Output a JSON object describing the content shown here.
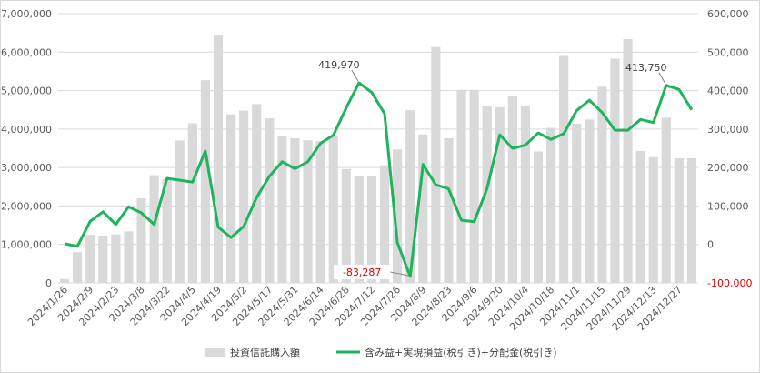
{
  "chart_data": {
    "type": "bar+line",
    "title": "",
    "x": [
      "2024/1/26",
      "2024/2/2",
      "2024/2/9",
      "2024/2/16",
      "2024/2/23",
      "2024/3/1",
      "2024/3/8",
      "2024/3/15",
      "2024/3/22",
      "2024/3/29",
      "2024/4/5",
      "2024/4/12",
      "2024/4/19",
      "2024/4/26",
      "2024/5/2",
      "2024/5/10",
      "2024/5/17",
      "2024/5/24",
      "2024/5/31",
      "2024/6/7",
      "2024/6/14",
      "2024/6/21",
      "2024/6/28",
      "2024/7/5",
      "2024/7/12",
      "2024/7/19",
      "2024/7/26",
      "2024/8/2",
      "2024/8/9",
      "2024/8/16",
      "2024/8/23",
      "2024/8/30",
      "2024/9/6",
      "2024/9/13",
      "2024/9/20",
      "2024/9/27",
      "2024/10/4",
      "2024/10/11",
      "2024/10/18",
      "2024/10/25",
      "2024/11/1",
      "2024/11/8",
      "2024/11/15",
      "2024/11/22",
      "2024/11/29",
      "2024/12/6",
      "2024/12/13",
      "2024/12/20",
      "2024/12/27",
      "2025/1/3"
    ],
    "x_tick_labels": [
      "2024/1/26",
      "2024/2/9",
      "2024/2/23",
      "2024/3/8",
      "2024/3/22",
      "2024/4/5",
      "2024/4/19",
      "2024/5/2",
      "2024/5/17",
      "2024/5/31",
      "2024/6/14",
      "2024/6/28",
      "2024/7/12",
      "2024/7/26",
      "2024/8/9",
      "2024/8/23",
      "2024/9/6",
      "2024/9/20",
      "2024/10/4",
      "2024/10/18",
      "2024/11/1",
      "2024/11/15",
      "2024/11/29",
      "2024/12/13",
      "2024/12/27"
    ],
    "series": [
      {
        "name": "投資信託購入額",
        "kind": "bar",
        "axis": "left",
        "color": "#d9d9d9",
        "values": [
          100000,
          800000,
          1250000,
          1230000,
          1260000,
          1340000,
          2200000,
          2800000,
          2700000,
          3700000,
          4150000,
          5270000,
          6430000,
          4380000,
          4480000,
          4650000,
          4280000,
          3830000,
          3760000,
          3710000,
          3690000,
          3830000,
          2960000,
          2790000,
          2770000,
          3060000,
          3470000,
          4490000,
          3860000,
          6130000,
          3760000,
          5020000,
          5020000,
          4600000,
          4570000,
          4870000,
          4600000,
          3420000,
          4030000,
          5900000,
          4140000,
          4250000,
          5100000,
          5830000,
          6340000,
          3430000,
          3270000,
          4300000,
          3240000,
          3240000
        ]
      },
      {
        "name": "含み益+実現損益(税引き)+分配金(税引き)",
        "kind": "line",
        "axis": "right",
        "color": "#1fb35b",
        "values": [
          2000,
          -5000,
          60000,
          85000,
          52000,
          98000,
          82000,
          52000,
          172000,
          167000,
          162000,
          243000,
          45000,
          18000,
          47000,
          122000,
          177000,
          215000,
          197000,
          215000,
          263000,
          284000,
          355000,
          419970,
          395000,
          340000,
          5000,
          -83287,
          208000,
          155000,
          145000,
          63000,
          59000,
          145000,
          285000,
          250000,
          258000,
          290000,
          273000,
          288000,
          348000,
          375000,
          343000,
          297000,
          297000,
          325000,
          317000,
          413750,
          403000,
          350000
        ]
      }
    ],
    "y_left": {
      "ylim": [
        0,
        7000000
      ],
      "ticks": [
        "0",
        "1,000,000",
        "2,000,000",
        "3,000,000",
        "4,000,000",
        "5,000,000",
        "6,000,000",
        "7,000,000"
      ]
    },
    "y_right": {
      "ylim": [
        -100000,
        600000
      ],
      "ticks": [
        "-100,000",
        "0",
        "100,000",
        "200,000",
        "300,000",
        "400,000",
        "500,000",
        "600,000"
      ]
    },
    "annotations": [
      {
        "text": "419,970",
        "x": "2024/7/5",
        "y": 419970,
        "color": "#404040"
      },
      {
        "text": "-83,287",
        "x": "2024/8/2",
        "y": -83287,
        "color": "#e00000"
      },
      {
        "text": "413,750",
        "x": "2024/12/20",
        "y": 413750,
        "color": "#404040"
      }
    ],
    "legend_position": "bottom",
    "grid": "horizontal"
  }
}
